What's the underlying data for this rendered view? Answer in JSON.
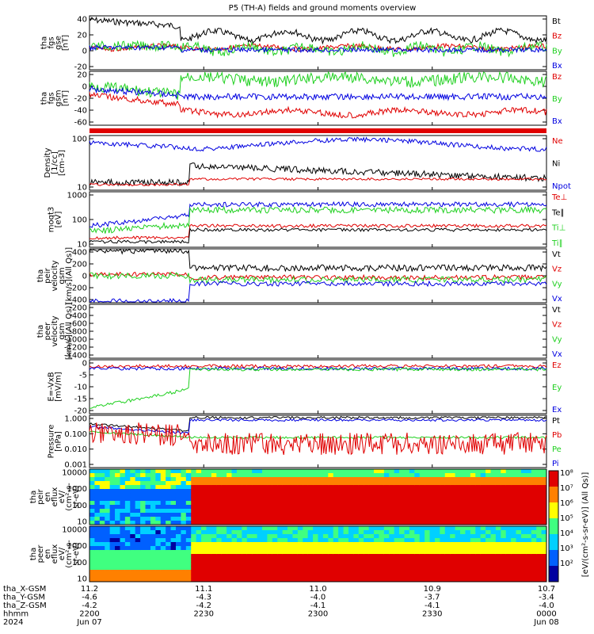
{
  "title": "P5 (TH-A) fields and ground moments overview",
  "colors": {
    "black": "#000000",
    "red": "#e00000",
    "green": "#20d020",
    "blue": "#0000e0"
  },
  "panels": [
    {
      "id": "fgs",
      "ylabel": [
        "tha",
        "fgs",
        "gse",
        "[nT]"
      ],
      "ticks": [
        "40",
        "20",
        "0",
        "-20"
      ],
      "legend": [
        {
          "t": "Bt",
          "c": "black"
        },
        {
          "t": "Bz",
          "c": "red"
        },
        {
          "t": "By",
          "c": "green"
        },
        {
          "t": "Bx",
          "c": "blue"
        }
      ]
    },
    {
      "id": "fgsgsm",
      "ylabel": [
        "tha",
        "fgs",
        "gsm",
        "[nT]"
      ],
      "ticks": [
        "20",
        "0",
        "-20",
        "-40",
        "-60"
      ],
      "legend": [
        {
          "t": "Bz",
          "c": "red"
        },
        {
          "t": "By",
          "c": "green"
        },
        {
          "t": "Bx",
          "c": "blue"
        }
      ]
    },
    {
      "id": "density",
      "ylabel": [
        "Density",
        "[1/cc]",
        "[cm-3]"
      ],
      "ticks": [
        "100",
        "10"
      ],
      "legend": [
        {
          "t": "Ne",
          "c": "red"
        },
        {
          "t": "Ni",
          "c": "black"
        },
        {
          "t": "Npot",
          "c": "blue"
        }
      ]
    },
    {
      "id": "temp",
      "ylabel": [
        "moqt3",
        "[eV]"
      ],
      "ticks": [
        "1000",
        "100",
        "10"
      ],
      "legend": [
        {
          "t": "Te⊥",
          "c": "red"
        },
        {
          "t": "Te∥",
          "c": "black"
        },
        {
          "t": "Ti⊥",
          "c": "green"
        },
        {
          "t": "Ti∥",
          "c": "green"
        }
      ]
    },
    {
      "id": "vel",
      "ylabel": [
        "tha",
        "peir",
        "velocity",
        "gsm",
        "[km/s](All Qs)]"
      ],
      "ticks": [
        "400",
        "200",
        "0",
        "-200",
        "-400"
      ],
      "legend": [
        {
          "t": "Vt",
          "c": "black"
        },
        {
          "t": "Vz",
          "c": "red"
        },
        {
          "t": "Vy",
          "c": "green"
        },
        {
          "t": "Vx",
          "c": "blue"
        }
      ]
    },
    {
      "id": "veer",
      "ylabel": [
        "tha",
        "peer",
        "velocity",
        "gsm",
        "[km/s](All Qs)]"
      ],
      "ticks": [
        "-200",
        "-400",
        "-600",
        "-800",
        "-1000",
        "-1200",
        "-1400"
      ],
      "legend": [
        {
          "t": "Vt",
          "c": "black"
        },
        {
          "t": "Vz",
          "c": "red"
        },
        {
          "t": "Vy",
          "c": "green"
        },
        {
          "t": "Vx",
          "c": "blue"
        }
      ]
    },
    {
      "id": "efield",
      "ylabel": [
        "E=-VxB",
        "[mV/m]"
      ],
      "ticks": [
        "0",
        "-5",
        "-10",
        "-15",
        "-20"
      ],
      "legend": [
        {
          "t": "Ez",
          "c": "red"
        },
        {
          "t": "Ey",
          "c": "green"
        },
        {
          "t": "Ex",
          "c": "blue"
        }
      ]
    },
    {
      "id": "pressure",
      "ylabel": [
        "Pressure",
        "[nPa]"
      ],
      "ticks": [
        "1.000",
        "0.100",
        "0.010",
        "0.001"
      ],
      "legend": [
        {
          "t": "Pt",
          "c": "black"
        },
        {
          "t": "Pb",
          "c": "red"
        },
        {
          "t": "Pe",
          "c": "green"
        },
        {
          "t": "Pi",
          "c": "blue"
        }
      ]
    },
    {
      "id": "peir",
      "ylabel": [
        "tha",
        "peir",
        "en",
        "eflux",
        "eV/",
        "(cm²-s-",
        "sr-eV)"
      ],
      "ticks": [
        "10000",
        "1000",
        "100",
        "10"
      ],
      "legend": []
    },
    {
      "id": "peer",
      "ylabel": [
        "tha",
        "peer",
        "en",
        "eflux",
        "eV/",
        "(cm²-s-",
        "sr-eV)"
      ],
      "ticks": [
        "10000",
        "1000",
        "100",
        "10"
      ],
      "legend": []
    }
  ],
  "colorbar": {
    "labels": [
      "10⁸",
      "10⁷",
      "10⁶",
      "10⁵",
      "10⁴",
      "10³",
      "10²"
    ],
    "title": "[eV/(cm²-s-sr-eV)] (All Qs)]"
  },
  "xaxis": {
    "rows": [
      {
        "label": "tha_X-GSM",
        "vals": [
          "11.2",
          "11.1",
          "11.0",
          "10.9",
          "10.7"
        ]
      },
      {
        "label": "tha_Y-GSM",
        "vals": [
          "-4.6",
          "-4.3",
          "-4.0",
          "-3.7",
          "-3.4"
        ]
      },
      {
        "label": "tha_Z-GSM",
        "vals": [
          "-4.2",
          "-4.2",
          "-4.1",
          "-4.1",
          "-4.0"
        ]
      },
      {
        "label": "hhmm",
        "vals": [
          "2200",
          "2230",
          "2300",
          "2330",
          "0000"
        ]
      },
      {
        "label": "2024",
        "vals": [
          "Jun 07",
          "",
          "",
          "",
          "Jun 08"
        ]
      }
    ]
  },
  "chart_data": {
    "type": "line",
    "title": "P5 (TH-A) fields and ground moments overview",
    "x_range": [
      "2024-06-07 22:00",
      "2024-06-08 00:00"
    ],
    "series": [
      {
        "name": "Bt",
        "values": [
          36,
          30,
          24,
          20,
          27,
          22,
          15,
          18,
          12,
          10,
          12,
          15,
          10,
          14,
          22
        ]
      },
      {
        "name": "Bz",
        "values": [
          -5,
          -10,
          -15,
          -18,
          -20,
          -20,
          -50,
          -52,
          -50,
          -60,
          -55,
          -58,
          -52,
          -55,
          -50
        ]
      },
      {
        "name": "Ni",
        "values": [
          10,
          9,
          8,
          9,
          10,
          8,
          40,
          35,
          30,
          25,
          30,
          25,
          20,
          15,
          12
        ]
      },
      {
        "name": "Vx",
        "values": [
          -350,
          -350,
          -360,
          -360,
          -380,
          -380,
          -20,
          -30,
          -40,
          -50,
          -60,
          -60,
          -70,
          -50,
          -40
        ]
      },
      {
        "name": "Ey",
        "values": [
          -18,
          -15,
          -12,
          -10,
          -12,
          -10,
          -1,
          0,
          0,
          0,
          0,
          0,
          0,
          0,
          0
        ]
      },
      {
        "name": "Pt",
        "values": [
          0.7,
          0.5,
          0.35,
          0.3,
          0.35,
          0.3,
          1.1,
          1.1,
          1.0,
          1.0,
          1.05,
          1.0,
          1.0,
          0.95,
          0.9
        ]
      }
    ]
  }
}
